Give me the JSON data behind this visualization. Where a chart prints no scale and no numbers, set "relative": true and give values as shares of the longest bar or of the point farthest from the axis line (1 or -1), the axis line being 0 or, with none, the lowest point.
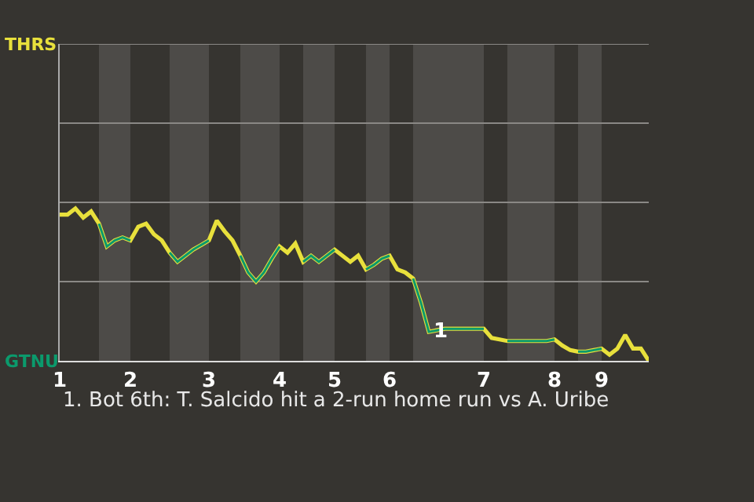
{
  "chart_data": {
    "type": "line",
    "relative": true,
    "categories": [
      "1",
      null,
      null,
      null,
      null,
      null,
      null,
      null,
      null,
      "2",
      null,
      null,
      null,
      null,
      null,
      null,
      null,
      null,
      null,
      "3",
      null,
      null,
      null,
      null,
      null,
      null,
      null,
      null,
      "4",
      null,
      null,
      null,
      null,
      null,
      null,
      "5",
      null,
      null,
      null,
      null,
      null,
      null,
      "6",
      null,
      null,
      null,
      null,
      null,
      null,
      null,
      null,
      null,
      null,
      null,
      "7",
      null,
      null,
      null,
      null,
      null,
      null,
      null,
      null,
      "8",
      null,
      null,
      null,
      null,
      null,
      "9",
      null,
      null,
      null,
      null,
      null,
      null
    ],
    "series": [
      {
        "name": "THRS",
        "color": "#e8e03c",
        "values": [
          0.96,
          0.96,
          1,
          0.94,
          0.98,
          0.9,
          0.75,
          0.79,
          0.81,
          0.79,
          0.88,
          0.9,
          0.83,
          0.79,
          0.71,
          0.65,
          0.69,
          0.73,
          0.76,
          0.79,
          0.92,
          0.85,
          0.79,
          0.69,
          0.58,
          0.52,
          0.58,
          0.67,
          0.75,
          0.71,
          0.77,
          0.65,
          0.69,
          0.65,
          0.69,
          0.73,
          0.69,
          0.65,
          0.69,
          0.6,
          0.63,
          0.67,
          0.69,
          0.6,
          0.58,
          0.54,
          0.38,
          0.19,
          0.2,
          0.21,
          0.21,
          0.21,
          0.21,
          0.21,
          0.21,
          0.15,
          0.14,
          0.13,
          0.13,
          0.13,
          0.13,
          0.13,
          0.13,
          0.14,
          0.1,
          0.07,
          0.06,
          0.06,
          0.07,
          0.08,
          0.04,
          0.08,
          0.17,
          0.08,
          0.08,
          0
        ]
      },
      {
        "name": "GTNU",
        "color": "#0b9a6c",
        "values": [
          null,
          null,
          null,
          null,
          null,
          0.9,
          0.75,
          0.79,
          0.81,
          0.79,
          null,
          null,
          null,
          null,
          0.71,
          0.65,
          0.69,
          0.73,
          0.76,
          0.79,
          null,
          null,
          null,
          0.69,
          0.58,
          0.52,
          0.58,
          0.67,
          0.75,
          null,
          null,
          0.65,
          0.69,
          0.65,
          0.69,
          0.73,
          null,
          null,
          null,
          0.6,
          0.63,
          0.67,
          0.69,
          null,
          null,
          0.54,
          0.38,
          0.19,
          0.2,
          0.21,
          0.21,
          0.21,
          0.21,
          0.21,
          0.21,
          null,
          null,
          0.13,
          0.13,
          0.13,
          0.13,
          0.13,
          0.13,
          0.14,
          null,
          null,
          0.06,
          0.06,
          0.07,
          0.08,
          null,
          null,
          null,
          null,
          null,
          null
        ]
      }
    ],
    "ref_lines": [
      {
        "axis": "y",
        "value": 0.52,
        "color": "#8a8885"
      },
      {
        "axis": "y",
        "value": 1.04,
        "color": "#8a8885"
      },
      {
        "axis": "y",
        "value": 1.56,
        "color": "#8a8885"
      },
      {
        "axis": "y",
        "value": 2.08,
        "color": "#8a8885"
      }
    ],
    "annotations": [
      {
        "text": "1",
        "y": 0.19
      },
      "1. Bot 6th: T. Salcido hit a 2-run home run vs A. Uribe"
    ]
  }
}
